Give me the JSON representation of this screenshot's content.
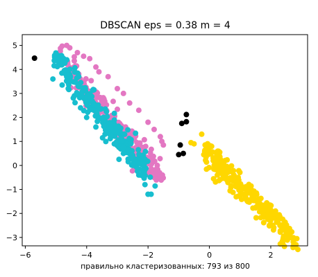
{
  "chart_data": {
    "type": "scatter",
    "title": "DBSCAN  eps = 0.38  m = 4",
    "xlabel": "правильно кластеризованных: 793 из 800",
    "ylabel": "",
    "xlim": [
      -6.1,
      3.2
    ],
    "ylim": [
      -3.35,
      5.45
    ],
    "xticks": [
      -6,
      -4,
      -2,
      0,
      2
    ],
    "yticks": [
      -3,
      -2,
      -1,
      0,
      1,
      2,
      3,
      4,
      5
    ],
    "grid": false,
    "legend": "none",
    "series": [
      {
        "color": "#e377c2",
        "count": 266,
        "band": {
          "x_start": -4.8,
          "x_end": -1.5,
          "y_intercept": -2.75,
          "slope": -1.45,
          "spread": 0.32
        },
        "points": [
          [
            -4.8,
            4.97
          ],
          [
            -4.65,
            5.0
          ],
          [
            -4.55,
            4.9
          ],
          [
            -4.3,
            4.7
          ],
          [
            -4.1,
            4.55
          ],
          [
            -3.9,
            4.45
          ],
          [
            -3.7,
            4.1
          ],
          [
            -3.6,
            3.9
          ],
          [
            -3.3,
            3.7
          ],
          [
            -3.0,
            3.2
          ],
          [
            -2.8,
            3.0
          ],
          [
            -2.6,
            2.6
          ],
          [
            -2.3,
            2.3
          ],
          [
            -2.0,
            1.8
          ],
          [
            -1.8,
            1.5
          ],
          [
            -1.6,
            1.2
          ],
          [
            -1.55,
            1.0
          ],
          [
            -1.5,
            0.85
          ]
        ]
      },
      {
        "color": "#17becf",
        "count": 266,
        "band": {
          "x_start": -5.1,
          "x_end": -1.9,
          "y_intercept": -3.4,
          "slope": -1.55,
          "spread": 0.32
        },
        "points": [
          [
            -5.1,
            3.6
          ],
          [
            -4.8,
            3.35
          ],
          [
            -4.6,
            3.2
          ],
          [
            -4.4,
            2.9
          ],
          [
            -4.2,
            2.4
          ],
          [
            -4.0,
            2.0
          ],
          [
            -3.7,
            1.6
          ],
          [
            -3.4,
            1.3
          ],
          [
            -3.1,
            0.9
          ],
          [
            -2.8,
            0.5
          ],
          [
            -2.5,
            0.0
          ],
          [
            -2.3,
            -0.4
          ],
          [
            -2.1,
            -0.8
          ],
          [
            -2.0,
            -1.2
          ],
          [
            -1.9,
            -1.2
          ]
        ]
      },
      {
        "color": "#ffd700",
        "count": 261,
        "band": {
          "x_start": -0.25,
          "x_end": 2.85,
          "y_intercept": 0.35,
          "slope": -1.25,
          "spread": 0.28
        },
        "points": [
          [
            -0.25,
            1.3
          ],
          [
            -0.6,
            0.95
          ],
          [
            -0.5,
            0.9
          ],
          [
            0.0,
            0.6
          ],
          [
            0.4,
            0.0
          ],
          [
            0.8,
            -0.4
          ],
          [
            1.2,
            -0.9
          ],
          [
            1.6,
            -1.4
          ],
          [
            2.0,
            -2.0
          ],
          [
            2.3,
            -2.5
          ],
          [
            2.6,
            -2.9
          ],
          [
            2.85,
            -3.05
          ]
        ]
      },
      {
        "color": "#000000",
        "count": 7,
        "points": [
          [
            -5.7,
            4.47
          ],
          [
            -0.75,
            2.12
          ],
          [
            -0.9,
            1.75
          ],
          [
            -0.75,
            1.82
          ],
          [
            -0.95,
            0.85
          ],
          [
            -1.0,
            0.45
          ],
          [
            -0.85,
            0.5
          ]
        ]
      }
    ]
  }
}
